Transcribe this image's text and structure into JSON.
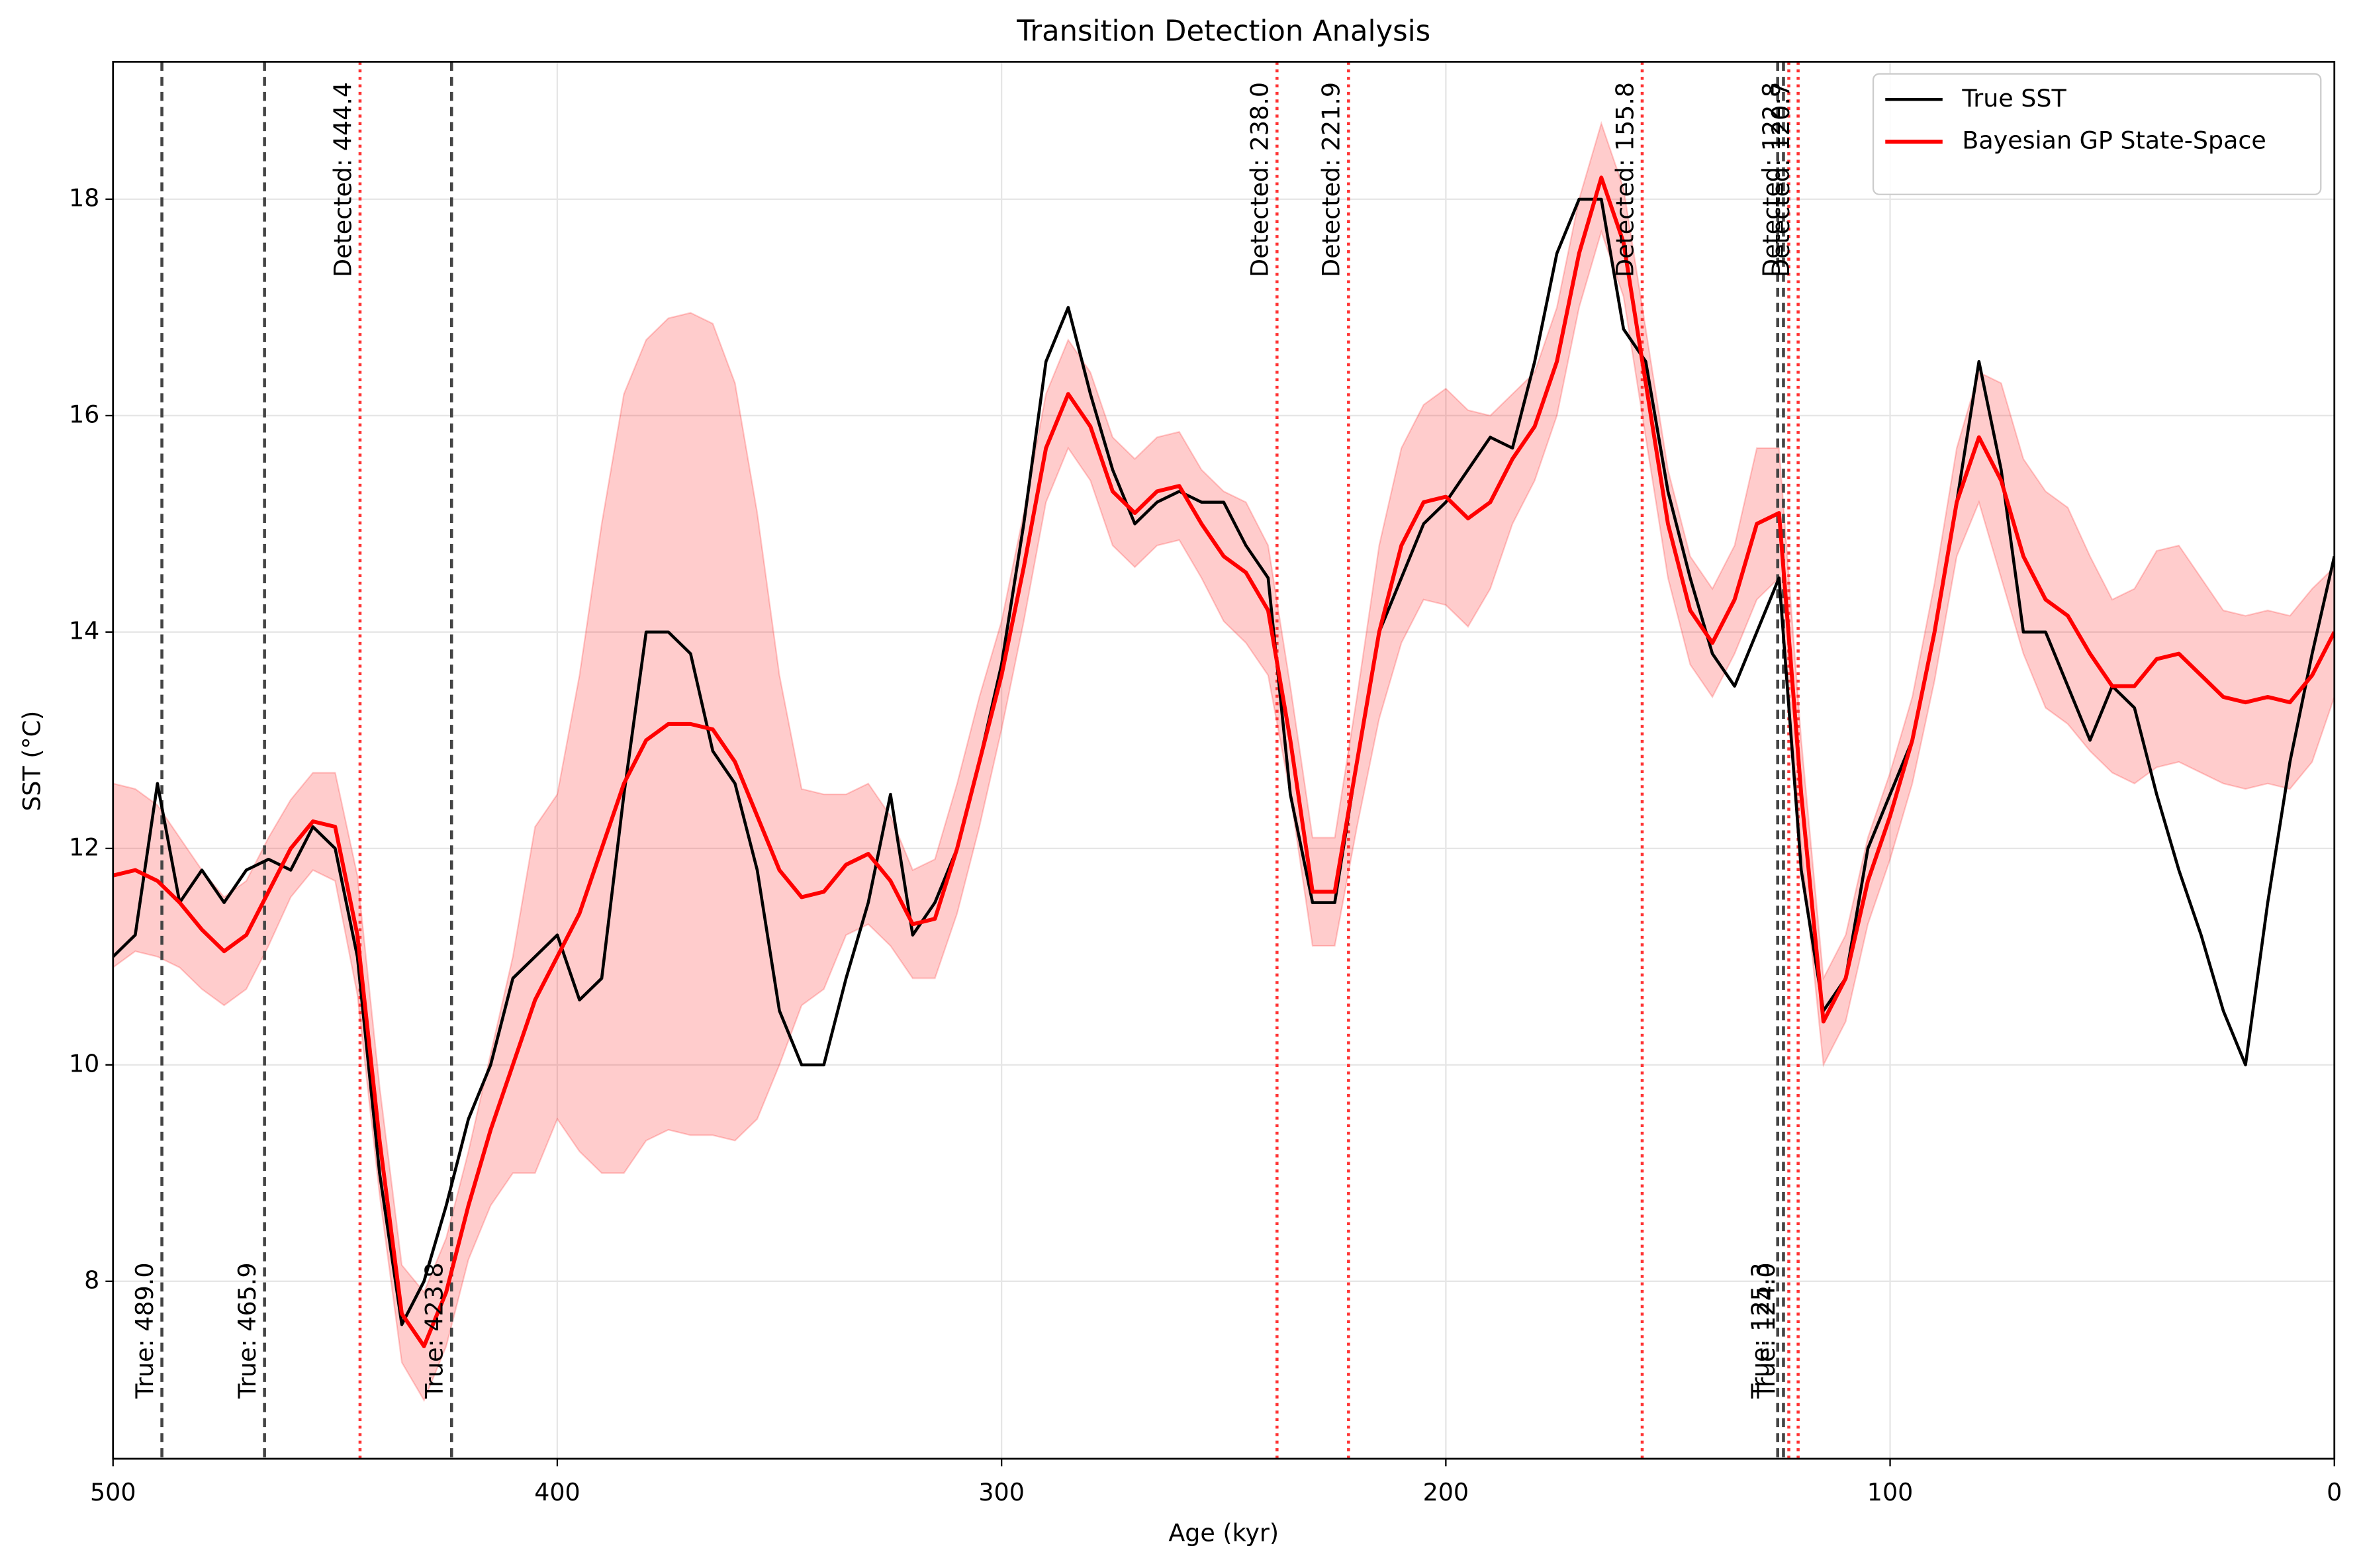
{
  "chart_data": {
    "type": "line",
    "title": "Transition Detection Analysis",
    "xlabel": "Age (kyr)",
    "ylabel": "SST (°C)",
    "xlim": [
      500,
      0
    ],
    "ylim": [
      6.36,
      19.27
    ],
    "xticks": [
      500,
      400,
      300,
      200,
      100,
      0
    ],
    "yticks": [
      8,
      10,
      12,
      14,
      16,
      18
    ],
    "grid": true,
    "legend": "upper right",
    "x": [
      500,
      495,
      490,
      485,
      480,
      475,
      470,
      465,
      460,
      455,
      450,
      445,
      440,
      435,
      430,
      425,
      420,
      415,
      410,
      405,
      400,
      395,
      390,
      385,
      380,
      375,
      370,
      365,
      360,
      355,
      350,
      345,
      340,
      335,
      330,
      325,
      320,
      315,
      310,
      305,
      300,
      295,
      290,
      285,
      280,
      275,
      270,
      265,
      260,
      255,
      250,
      245,
      240,
      235,
      230,
      225,
      220,
      215,
      210,
      205,
      200,
      195,
      190,
      185,
      180,
      175,
      170,
      165,
      160,
      155,
      150,
      145,
      140,
      135,
      130,
      125,
      120,
      115,
      110,
      105,
      100,
      95,
      90,
      85,
      80,
      75,
      70,
      65,
      60,
      55,
      50,
      45,
      40,
      35,
      30,
      25,
      20,
      15,
      10,
      5,
      0
    ],
    "series": [
      {
        "name": "True SST",
        "color": "#000000",
        "width": 2,
        "values": [
          11.0,
          11.2,
          12.6,
          11.5,
          11.8,
          11.5,
          11.8,
          11.9,
          11.8,
          12.2,
          12.0,
          11.0,
          9.0,
          7.6,
          8.0,
          8.7,
          9.5,
          10.0,
          10.8,
          11.0,
          11.2,
          10.6,
          10.8,
          12.5,
          14.0,
          14.0,
          13.8,
          12.9,
          12.6,
          11.8,
          10.5,
          10.0,
          10.0,
          10.8,
          11.5,
          12.5,
          11.2,
          11.5,
          12.0,
          12.8,
          13.7,
          15.0,
          16.5,
          17.0,
          16.2,
          15.5,
          15.0,
          15.2,
          15.3,
          15.2,
          15.2,
          14.8,
          14.5,
          12.5,
          11.5,
          11.5,
          12.8,
          14.0,
          14.5,
          15.0,
          15.2,
          15.5,
          15.8,
          15.7,
          16.5,
          17.5,
          18.0,
          18.0,
          16.8,
          16.5,
          15.3,
          14.5,
          13.8,
          13.5,
          14.0,
          14.5,
          11.8,
          10.5,
          10.8,
          12.0,
          12.5,
          13.0,
          14.0,
          15.2,
          16.5,
          15.5,
          14.0,
          14.0,
          13.5,
          13.0,
          13.5,
          13.3,
          12.5,
          11.8,
          11.2,
          10.5,
          10.0,
          11.5,
          12.8,
          13.8,
          14.7
        ]
      },
      {
        "name": "Bayesian GP State-Space",
        "color": "#ff0000",
        "width": 2.6,
        "values": [
          11.75,
          11.8,
          11.7,
          11.5,
          11.25,
          11.05,
          11.2,
          11.6,
          12.0,
          12.25,
          12.2,
          11.2,
          9.3,
          7.7,
          7.4,
          7.9,
          8.7,
          9.4,
          10.0,
          10.6,
          11.0,
          11.4,
          12.0,
          12.6,
          13.0,
          13.15,
          13.15,
          13.1,
          12.8,
          12.3,
          11.8,
          11.55,
          11.6,
          11.85,
          11.95,
          11.7,
          11.3,
          11.35,
          12.0,
          12.8,
          13.6,
          14.6,
          15.7,
          16.2,
          15.9,
          15.3,
          15.1,
          15.3,
          15.35,
          15.0,
          14.7,
          14.55,
          14.2,
          13.0,
          11.6,
          11.6,
          12.8,
          14.0,
          14.8,
          15.2,
          15.25,
          15.05,
          15.2,
          15.6,
          15.9,
          16.5,
          17.5,
          18.2,
          17.6,
          16.3,
          15.0,
          14.2,
          13.9,
          14.3,
          15.0,
          15.1,
          12.5,
          10.4,
          10.8,
          11.7,
          12.3,
          13.0,
          14.0,
          15.2,
          15.8,
          15.4,
          14.7,
          14.3,
          14.15,
          13.8,
          13.5,
          13.5,
          13.75,
          13.8,
          13.6,
          13.4,
          13.35,
          13.4,
          13.35,
          13.6,
          14.0
        ]
      }
    ],
    "band": {
      "color": "#ff0000",
      "opacity": 0.2,
      "lower": [
        10.9,
        11.05,
        11.0,
        10.9,
        10.7,
        10.55,
        10.7,
        11.1,
        11.55,
        11.8,
        11.7,
        10.65,
        8.8,
        7.25,
        6.9,
        7.4,
        8.2,
        8.7,
        9.0,
        9.0,
        9.5,
        9.2,
        9.0,
        9.0,
        9.3,
        9.4,
        9.35,
        9.35,
        9.3,
        9.5,
        10.0,
        10.55,
        10.7,
        11.2,
        11.3,
        11.1,
        10.8,
        10.8,
        11.4,
        12.2,
        13.1,
        14.1,
        15.2,
        15.7,
        15.4,
        14.8,
        14.6,
        14.8,
        14.85,
        14.5,
        14.1,
        13.9,
        13.6,
        12.5,
        11.1,
        11.1,
        12.2,
        13.2,
        13.9,
        14.3,
        14.25,
        14.05,
        14.4,
        15.0,
        15.4,
        16.0,
        17.0,
        17.7,
        17.1,
        15.8,
        14.5,
        13.7,
        13.4,
        13.8,
        14.3,
        14.5,
        12.0,
        10.0,
        10.4,
        11.3,
        11.9,
        12.6,
        13.55,
        14.7,
        15.2,
        14.5,
        13.8,
        13.3,
        13.15,
        12.9,
        12.7,
        12.6,
        12.75,
        12.8,
        12.7,
        12.6,
        12.55,
        12.6,
        12.55,
        12.8,
        13.4
      ],
      "upper": [
        12.6,
        12.55,
        12.4,
        12.1,
        11.8,
        11.55,
        11.7,
        12.1,
        12.45,
        12.7,
        12.7,
        11.75,
        9.8,
        8.15,
        7.9,
        8.4,
        9.2,
        10.1,
        11.0,
        12.2,
        12.5,
        13.6,
        15.0,
        16.2,
        16.7,
        16.9,
        16.95,
        16.85,
        16.3,
        15.1,
        13.6,
        12.55,
        12.5,
        12.5,
        12.6,
        12.3,
        11.8,
        11.9,
        12.6,
        13.4,
        14.1,
        15.1,
        16.2,
        16.7,
        16.4,
        15.8,
        15.6,
        15.8,
        15.85,
        15.5,
        15.3,
        15.2,
        14.8,
        13.5,
        12.1,
        12.1,
        13.4,
        14.8,
        15.7,
        16.1,
        16.25,
        16.05,
        16.0,
        16.2,
        16.4,
        17.0,
        18.0,
        18.7,
        18.1,
        16.8,
        15.5,
        14.7,
        14.4,
        14.8,
        15.7,
        15.7,
        13.0,
        10.8,
        11.2,
        12.1,
        12.7,
        13.4,
        14.45,
        15.7,
        16.4,
        16.3,
        15.6,
        15.3,
        15.15,
        14.7,
        14.3,
        14.4,
        14.75,
        14.8,
        14.5,
        14.2,
        14.15,
        14.2,
        14.15,
        14.4,
        14.6
      ]
    },
    "true_transitions": {
      "color": "#444444",
      "lines": [
        {
          "value": 489.0,
          "label": "True: 489.0"
        },
        {
          "value": 465.9,
          "label": "True: 465.9"
        },
        {
          "value": 423.8,
          "label": "True: 423.8"
        },
        {
          "value": 125.3,
          "label": "True: 125.3"
        },
        {
          "value": 124.0,
          "label": "True: 124.0"
        }
      ]
    },
    "detected_transitions": {
      "color": "#ff3333",
      "lines": [
        {
          "value": 444.4,
          "label": "Detected: 444.4"
        },
        {
          "value": 238.0,
          "label": "Detected: 238.0"
        },
        {
          "value": 221.9,
          "label": "Detected: 221.9"
        },
        {
          "value": 155.8,
          "label": "Detected: 155.8"
        },
        {
          "value": 122.8,
          "label": "Detected: 122.8"
        },
        {
          "value": 120.7,
          "label": "Detected: 120.7"
        }
      ]
    }
  }
}
